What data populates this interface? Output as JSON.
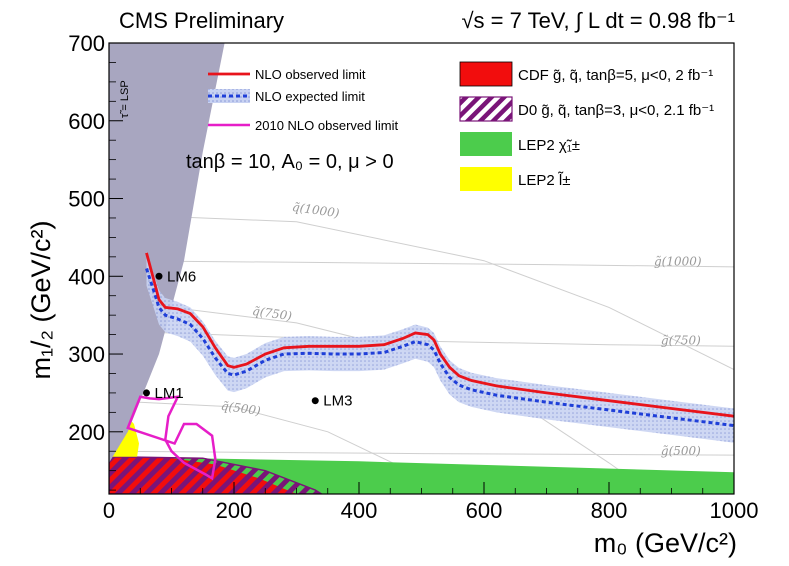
{
  "header": {
    "left": "CMS Preliminary",
    "right": "√s = 7 TeV, ∫ L dt = 0.98 fb⁻¹"
  },
  "params": "tanβ = 10,  A₀ = 0,  μ > 0",
  "chart_data": {
    "type": "line",
    "xlabel": "m₀ (GeV/c²)",
    "ylabel": "m₁/₂ (GeV/c²)",
    "xlim": [
      0,
      1000
    ],
    "ylim": [
      120,
      700
    ],
    "xticks": [
      "0",
      "200",
      "400",
      "600",
      "800",
      "1000"
    ],
    "yticks": [
      "200",
      "300",
      "400",
      "500",
      "600",
      "700"
    ],
    "stau_lsp_label": "τ̃ = LSP",
    "series": [
      {
        "name": "NLO observed limit",
        "color": "#e8141c",
        "x": [
          60,
          70,
          80,
          90,
          110,
          130,
          150,
          170,
          190,
          200,
          220,
          250,
          280,
          320,
          360,
          400,
          440,
          470,
          490,
          510,
          520,
          530,
          545,
          560,
          580,
          620,
          700,
          800,
          900,
          1000
        ],
        "y": [
          430,
          400,
          370,
          360,
          358,
          352,
          335,
          308,
          285,
          283,
          287,
          300,
          308,
          310,
          310,
          310,
          312,
          320,
          327,
          325,
          318,
          300,
          283,
          272,
          266,
          259,
          250,
          240,
          230,
          220
        ]
      },
      {
        "name": "NLO expected limit",
        "color": "#1f3fd8",
        "x": [
          60,
          70,
          80,
          90,
          110,
          130,
          150,
          170,
          190,
          200,
          220,
          250,
          280,
          320,
          360,
          400,
          440,
          470,
          490,
          510,
          520,
          530,
          545,
          560,
          580,
          620,
          700,
          800,
          900,
          1000
        ],
        "y": [
          410,
          385,
          360,
          350,
          345,
          338,
          320,
          295,
          275,
          273,
          278,
          292,
          300,
          301,
          300,
          300,
          302,
          310,
          316,
          312,
          305,
          288,
          270,
          260,
          254,
          247,
          238,
          228,
          218,
          208
        ]
      },
      {
        "name": "2010 NLO observed limit",
        "color": "#e61ec8",
        "x": [
          30,
          45,
          50,
          65,
          80,
          110,
          95,
          90,
          100,
          120,
          155,
          165,
          170,
          165,
          140,
          120,
          105
        ],
        "y": [
          205,
          235,
          245,
          243,
          242,
          245,
          220,
          190,
          175,
          160,
          145,
          140,
          165,
          195,
          210,
          210,
          185
        ]
      }
    ],
    "regions": [
      {
        "name": "CDF  g̃, q̃, tanβ=5, μ<0, 2 fb⁻¹",
        "color": "#f20d0d"
      },
      {
        "name": "D0  g̃, q̃, tanβ=3, μ<0, 2.1 fb⁻¹",
        "color": "#7a1478"
      },
      {
        "name": "LEP2  χ̃₁±",
        "color": "#4ccc4c"
      },
      {
        "name": "LEP2  l̃±",
        "color": "#ffff00"
      }
    ],
    "benchmarks": [
      {
        "name": "LM6",
        "x": 80,
        "y": 400
      },
      {
        "name": "LM1",
        "x": 60,
        "y": 250
      },
      {
        "name": "LM3",
        "x": 330,
        "y": 240
      }
    ],
    "contours": [
      {
        "label": "q̃(1000)",
        "x": 330,
        "y": 480
      },
      {
        "label": "g̃(1000)",
        "x": 910,
        "y": 414
      },
      {
        "label": "q̃(750)",
        "x": 260,
        "y": 347
      },
      {
        "label": "g̃(750)",
        "x": 915,
        "y": 312
      },
      {
        "label": "q̃(500)",
        "x": 210,
        "y": 225
      },
      {
        "label": "g̃(500)",
        "x": 915,
        "y": 170
      }
    ]
  }
}
